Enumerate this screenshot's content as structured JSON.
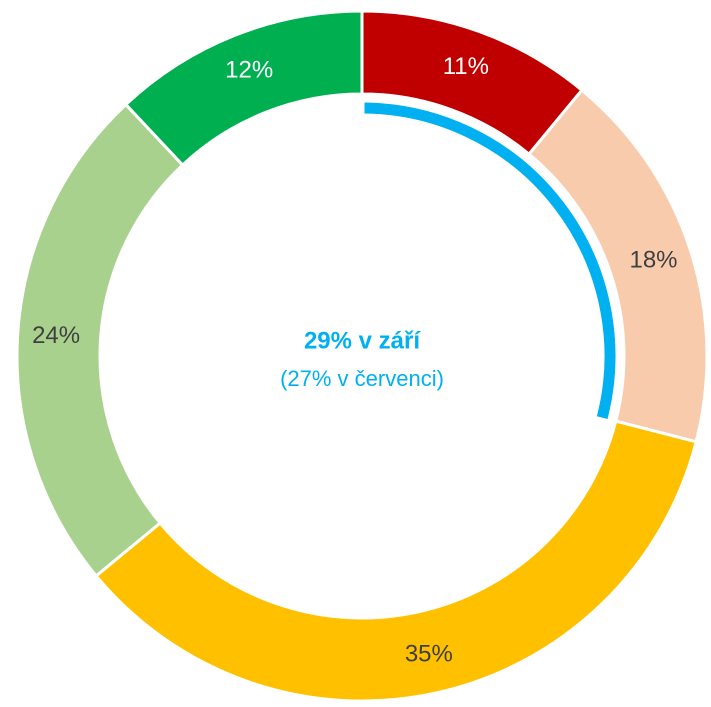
{
  "chart_data": {
    "type": "donut",
    "categories": [
      null,
      null,
      null,
      null,
      null
    ],
    "values": [
      11,
      18,
      35,
      24,
      12
    ],
    "value_labels": [
      "11%",
      "18%",
      "35%",
      "24%",
      "12%"
    ],
    "colors": [
      "#c00000",
      "#f8cbad",
      "#ffc000",
      "#a9d18e",
      "#00b050"
    ],
    "label_colors": [
      "#ffffff",
      "#404040",
      "#404040",
      "#404040",
      "#ffffff"
    ],
    "annotation": {
      "values": [
        29,
        27
      ],
      "labels": [
        "29% v září",
        "(27% v červenci)"
      ],
      "color": "#00b0f0"
    }
  }
}
